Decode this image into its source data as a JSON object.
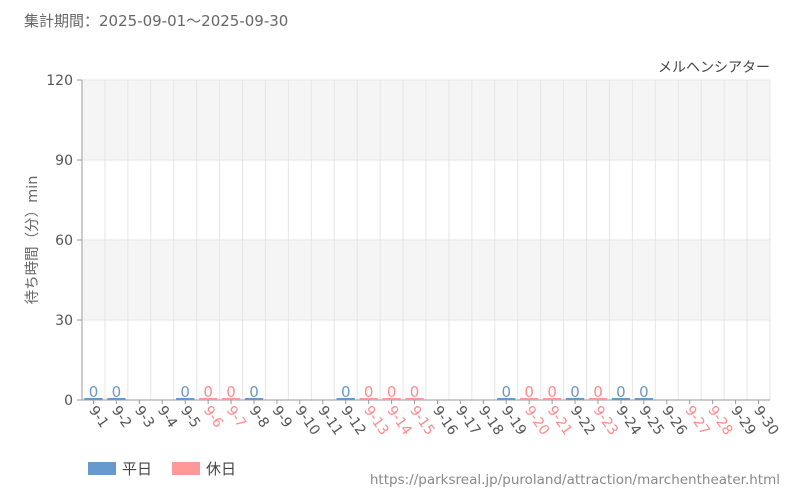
{
  "header": {
    "period": "集計期間：2025-09-01～2025-09-30"
  },
  "legend": {
    "weekday_label": "平日",
    "holiday_label": "休日"
  },
  "source": {
    "url_text": "https://parksreal.jp/puroland/attraction/marchentheater.html"
  },
  "colors": {
    "weekday": "#6699cc",
    "holiday": "#ff9999",
    "weekday_text": "#6699cc",
    "holiday_text": "#ff8a8a",
    "axis_text": "#555555",
    "grid": "#e6e6e6",
    "band": "#f5f5f5"
  },
  "chart_data": {
    "type": "bar",
    "title": "メルヘンシアター",
    "xlabel": "",
    "ylabel": "待ち時間（分）min",
    "ylim": [
      0,
      120
    ],
    "yticks": [
      0,
      30,
      60,
      90,
      120
    ],
    "grid": true,
    "legend_position": "bottom-left",
    "categories": [
      "9-1",
      "9-2",
      "9-3",
      "9-4",
      "9-5",
      "9-6",
      "9-7",
      "9-8",
      "9-9",
      "9-10",
      "9-11",
      "9-12",
      "9-13",
      "9-14",
      "9-15",
      "9-16",
      "9-17",
      "9-18",
      "9-19",
      "9-20",
      "9-21",
      "9-22",
      "9-23",
      "9-24",
      "9-25",
      "9-26",
      "9-27",
      "9-28",
      "9-29",
      "9-30"
    ],
    "day_type": [
      "weekday",
      "weekday",
      "weekday",
      "weekday",
      "weekday",
      "holiday",
      "holiday",
      "weekday",
      "weekday",
      "weekday",
      "weekday",
      "weekday",
      "holiday",
      "holiday",
      "holiday",
      "weekday",
      "weekday",
      "weekday",
      "weekday",
      "holiday",
      "holiday",
      "weekday",
      "holiday",
      "weekday",
      "weekday",
      "weekday",
      "holiday",
      "holiday",
      "weekday",
      "weekday"
    ],
    "values": [
      0,
      0,
      null,
      null,
      0,
      0,
      0,
      0,
      null,
      null,
      null,
      0,
      0,
      0,
      0,
      null,
      null,
      null,
      0,
      0,
      0,
      0,
      0,
      0,
      0,
      null,
      null,
      null,
      null,
      null
    ],
    "data_labels": [
      "0",
      "0",
      "",
      "",
      "0",
      "0",
      "0",
      "0",
      "",
      "",
      "",
      "0",
      "0",
      "0",
      "0",
      "",
      "",
      "",
      "0",
      "0",
      "0",
      "0",
      "0",
      "0",
      "0",
      "",
      "",
      "",
      "",
      ""
    ],
    "series": [
      {
        "name": "平日",
        "day_type": "weekday"
      },
      {
        "name": "休日",
        "day_type": "holiday"
      }
    ]
  }
}
